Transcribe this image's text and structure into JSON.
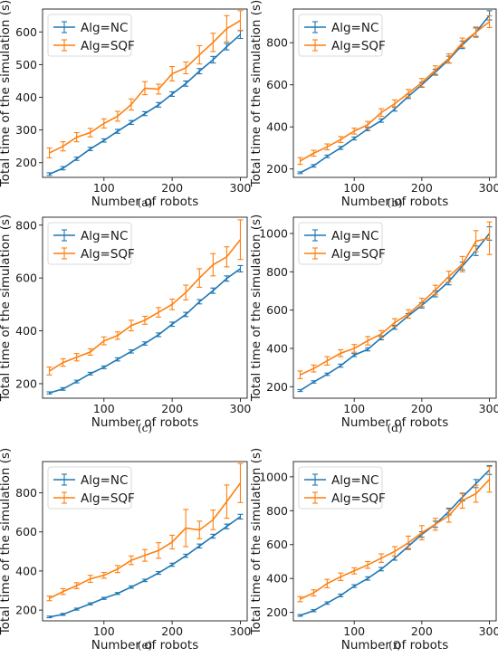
{
  "colors": {
    "NC": "#1f77b4",
    "SQF": "#ff7f0e"
  },
  "chart_data": [
    {
      "type": "line",
      "caption": "(a)",
      "xlabel": "Number of robots",
      "ylabel": "Total time of the simulation (s)",
      "xlim": [
        10,
        310
      ],
      "ylim": [
        155,
        670
      ],
      "xticks": [
        100,
        200,
        300
      ],
      "yticks": [
        200,
        300,
        400,
        500,
        600
      ],
      "legend": "top-left",
      "x": [
        20,
        40,
        60,
        80,
        100,
        120,
        140,
        160,
        180,
        200,
        220,
        240,
        260,
        280,
        300
      ],
      "series": [
        {
          "name": "Alg=NC",
          "color": "NC",
          "values": [
            165,
            183,
            212,
            242,
            268,
            296,
            323,
            350,
            377,
            410,
            442,
            480,
            515,
            555,
            592
          ],
          "errors": [
            4,
            5,
            5,
            5,
            5,
            6,
            6,
            6,
            7,
            7,
            8,
            8,
            10,
            10,
            12
          ]
        },
        {
          "name": "Alg=SQF",
          "color": "SQF",
          "values": [
            230,
            250,
            278,
            292,
            320,
            342,
            378,
            428,
            425,
            472,
            490,
            530,
            568,
            610,
            635
          ],
          "errors": [
            15,
            14,
            14,
            13,
            14,
            15,
            17,
            20,
            15,
            22,
            18,
            28,
            28,
            40,
            30
          ]
        }
      ]
    },
    {
      "type": "line",
      "caption": "(b)",
      "xlabel": "Number of robots",
      "ylabel": "Total time of the simulation (s)",
      "xlim": [
        10,
        310
      ],
      "ylim": [
        160,
        960
      ],
      "xticks": [
        100,
        200,
        300
      ],
      "yticks": [
        200,
        400,
        600,
        800
      ],
      "legend": "top-left",
      "x": [
        20,
        40,
        60,
        80,
        100,
        120,
        140,
        160,
        180,
        200,
        220,
        240,
        260,
        280,
        300
      ],
      "series": [
        {
          "name": "Alg=NC",
          "color": "NC",
          "values": [
            182,
            215,
            260,
            300,
            345,
            390,
            430,
            485,
            545,
            600,
            660,
            720,
            790,
            850,
            930
          ],
          "errors": [
            4,
            6,
            6,
            7,
            7,
            8,
            8,
            10,
            10,
            12,
            14,
            16,
            18,
            20,
            22
          ]
        },
        {
          "name": "Alg=SQF",
          "color": "SQF",
          "values": [
            238,
            275,
            305,
            340,
            380,
            410,
            468,
            510,
            560,
            610,
            670,
            725,
            800,
            850,
            900
          ],
          "errors": [
            16,
            14,
            14,
            14,
            14,
            16,
            18,
            18,
            18,
            20,
            20,
            22,
            22,
            25,
            28
          ]
        }
      ]
    },
    {
      "type": "line",
      "caption": "(c)",
      "xlabel": "Number of robots",
      "ylabel": "Total time of the simulation (s)",
      "xlim": [
        10,
        310
      ],
      "ylim": [
        145,
        830
      ],
      "xticks": [
        100,
        200,
        300
      ],
      "yticks": [
        200,
        400,
        600,
        800
      ],
      "legend": "top-left",
      "x": [
        20,
        40,
        60,
        80,
        100,
        120,
        140,
        160,
        180,
        200,
        220,
        240,
        260,
        280,
        300
      ],
      "series": [
        {
          "name": "Alg=NC",
          "color": "NC",
          "values": [
            165,
            180,
            208,
            238,
            262,
            292,
            322,
            352,
            385,
            425,
            462,
            510,
            552,
            598,
            635
          ],
          "errors": [
            4,
            5,
            5,
            5,
            5,
            6,
            6,
            6,
            7,
            8,
            8,
            8,
            10,
            10,
            12
          ]
        },
        {
          "name": "Alg=SQF",
          "color": "SQF",
          "values": [
            248,
            280,
            300,
            320,
            362,
            382,
            420,
            440,
            470,
            500,
            545,
            600,
            650,
            680,
            745
          ],
          "errors": [
            15,
            14,
            14,
            12,
            15,
            14,
            20,
            15,
            18,
            20,
            28,
            35,
            42,
            38,
            75
          ]
        }
      ]
    },
    {
      "type": "line",
      "caption": "(d)",
      "xlabel": "Number of robots",
      "ylabel": "Total time of the simulation (s)",
      "xlim": [
        10,
        310
      ],
      "ylim": [
        140,
        1085
      ],
      "xticks": [
        100,
        200,
        300
      ],
      "yticks": [
        200,
        400,
        600,
        800,
        1000
      ],
      "legend": "top-left",
      "x": [
        20,
        40,
        60,
        80,
        100,
        120,
        140,
        160,
        180,
        200,
        220,
        240,
        260,
        280,
        300
      ],
      "series": [
        {
          "name": "Alg=NC",
          "color": "NC",
          "values": [
            180,
            225,
            265,
            310,
            365,
            395,
            455,
            510,
            570,
            625,
            685,
            750,
            830,
            910,
            1000
          ],
          "errors": [
            5,
            6,
            6,
            8,
            8,
            8,
            10,
            10,
            12,
            14,
            16,
            18,
            20,
            25,
            35
          ]
        },
        {
          "name": "Alg=SQF",
          "color": "SQF",
          "values": [
            262,
            295,
            335,
            375,
            400,
            440,
            475,
            535,
            580,
            640,
            705,
            775,
            840,
            960,
            975
          ],
          "errors": [
            20,
            18,
            22,
            18,
            20,
            22,
            18,
            20,
            22,
            22,
            25,
            28,
            40,
            55,
            85
          ]
        }
      ]
    },
    {
      "type": "line",
      "caption": "(e)",
      "xlabel": "Number of robots",
      "ylabel": "Total time of the simulation (s)",
      "xlim": [
        10,
        310
      ],
      "ylim": [
        145,
        960
      ],
      "xticks": [
        100,
        200,
        300
      ],
      "yticks": [
        200,
        400,
        600,
        800
      ],
      "legend": "top-left",
      "x": [
        20,
        40,
        60,
        80,
        100,
        120,
        140,
        160,
        180,
        200,
        220,
        240,
        260,
        280,
        300
      ],
      "series": [
        {
          "name": "Alg=NC",
          "color": "NC",
          "values": [
            165,
            178,
            205,
            232,
            260,
            285,
            318,
            352,
            390,
            432,
            478,
            528,
            578,
            628,
            678
          ],
          "errors": [
            4,
            5,
            5,
            5,
            5,
            5,
            6,
            6,
            7,
            8,
            8,
            10,
            10,
            12,
            12
          ]
        },
        {
          "name": "Alg=SQF",
          "color": "SQF",
          "values": [
            260,
            295,
            325,
            360,
            378,
            410,
            455,
            480,
            505,
            548,
            620,
            610,
            662,
            755,
            850
          ],
          "errors": [
            12,
            15,
            15,
            18,
            15,
            18,
            22,
            30,
            40,
            35,
            95,
            45,
            50,
            85,
            100
          ]
        }
      ]
    },
    {
      "type": "line",
      "caption": "(f)",
      "xlabel": "Number of robots",
      "ylabel": "Total time of the simulation (s)",
      "xlim": [
        10,
        310
      ],
      "ylim": [
        150,
        1090
      ],
      "xticks": [
        100,
        200,
        300
      ],
      "yticks": [
        200,
        400,
        600,
        800,
        1000
      ],
      "legend": "top-left",
      "x": [
        20,
        40,
        60,
        80,
        100,
        120,
        140,
        160,
        180,
        200,
        220,
        240,
        260,
        280,
        300
      ],
      "series": [
        {
          "name": "Alg=NC",
          "color": "NC",
          "values": [
            182,
            210,
            255,
            300,
            355,
            400,
            455,
            520,
            590,
            660,
            720,
            795,
            880,
            960,
            1040
          ],
          "errors": [
            5,
            6,
            7,
            8,
            8,
            10,
            10,
            12,
            14,
            16,
            18,
            20,
            22,
            24,
            26
          ]
        },
        {
          "name": "Alg=SQF",
          "color": "SQF",
          "values": [
            278,
            315,
            370,
            410,
            445,
            480,
            520,
            560,
            610,
            670,
            720,
            770,
            860,
            900,
            985
          ],
          "errors": [
            15,
            18,
            25,
            22,
            18,
            20,
            25,
            28,
            40,
            42,
            35,
            38,
            45,
            50,
            75
          ]
        }
      ]
    }
  ]
}
